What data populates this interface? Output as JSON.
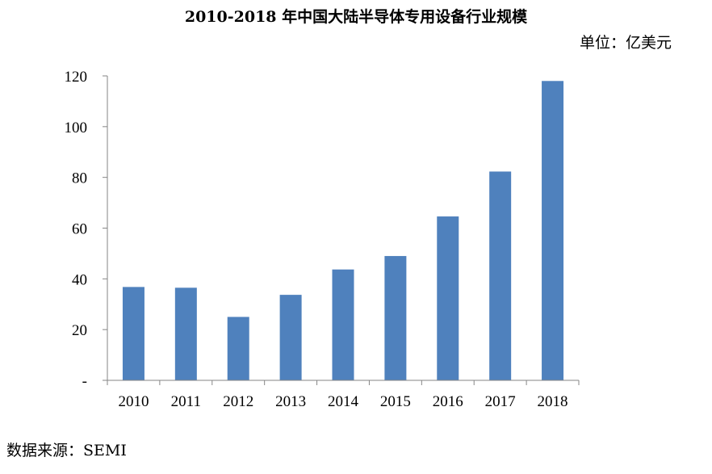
{
  "chart_data": {
    "type": "bar",
    "title": "2010-2018 年中国大陆半导体专用设备行业规模",
    "unit_label": "单位：亿美元",
    "source": "数据来源：SEMI",
    "categories": [
      "2010",
      "2011",
      "2012",
      "2013",
      "2014",
      "2015",
      "2016",
      "2017",
      "2018"
    ],
    "values": [
      36.8,
      36.5,
      25,
      33.7,
      43.7,
      49,
      64.6,
      82.3,
      118
    ],
    "ylim": [
      0,
      120
    ],
    "yticks": [
      0,
      20,
      40,
      60,
      80,
      100,
      120
    ],
    "ytick_labels": [
      "-",
      "20",
      "40",
      "60",
      "80",
      "100",
      "120"
    ],
    "bar_color": "#4f81bd",
    "grid": false,
    "legend": "none"
  }
}
